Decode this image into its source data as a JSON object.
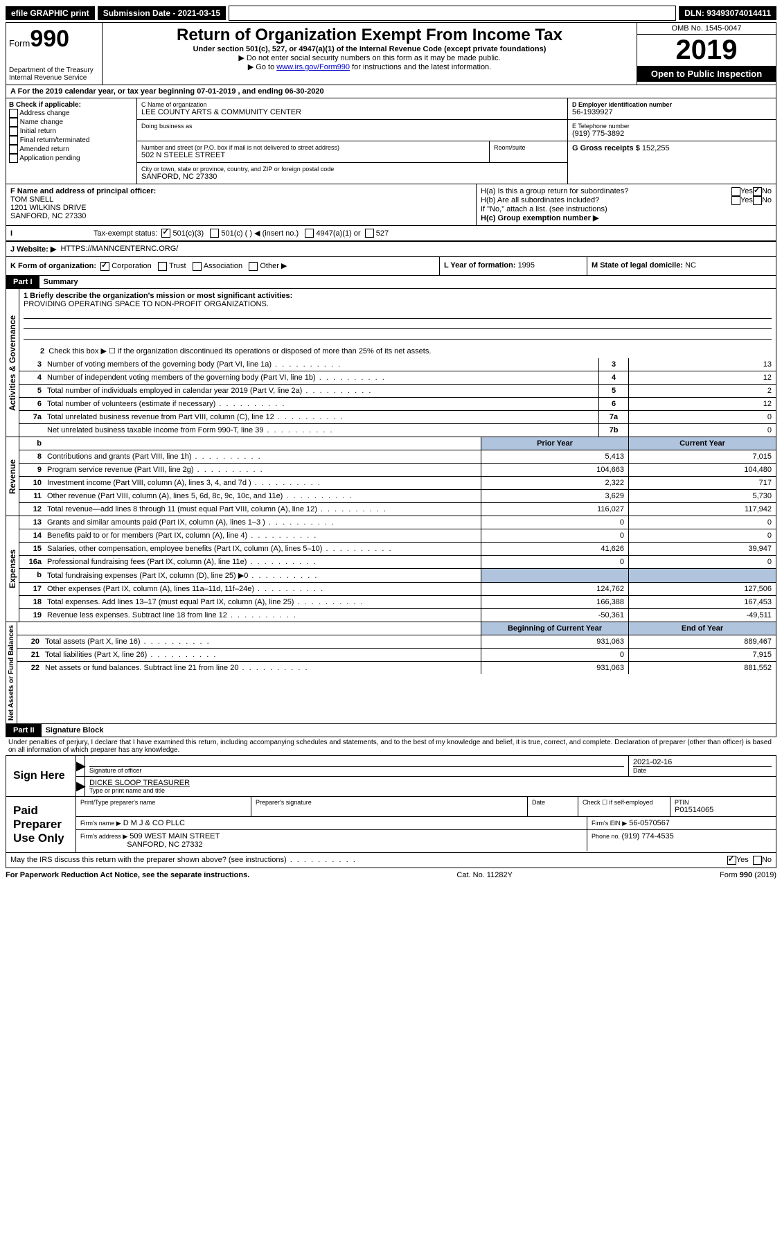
{
  "top": {
    "efile": "efile GRAPHIC print",
    "subdate_label": "Submission Date - ",
    "subdate": "2021-03-15",
    "dln_label": "DLN: ",
    "dln": "93493074014411"
  },
  "header": {
    "form_label": "Form",
    "form_num": "990",
    "dept": "Department of the Treasury\nInternal Revenue Service",
    "title": "Return of Organization Exempt From Income Tax",
    "sub1": "Under section 501(c), 527, or 4947(a)(1) of the Internal Revenue Code (except private foundations)",
    "sub2": "▶ Do not enter social security numbers on this form as it may be made public.",
    "sub3": "▶ Go to www.irs.gov/Form990 for instructions and the latest information.",
    "omb": "OMB No. 1545-0047",
    "year": "2019",
    "open": "Open to Public Inspection"
  },
  "rowA": "A For the 2019 calendar year, or tax year beginning 07-01-2019    , and ending 06-30-2020",
  "B": {
    "label": "B Check if applicable:",
    "items": [
      "Address change",
      "Name change",
      "Initial return",
      "Final return/terminated",
      "Amended return",
      "Application pending"
    ]
  },
  "C": {
    "name_label": "C Name of organization",
    "name": "LEE COUNTY ARTS & COMMUNITY CENTER",
    "dba_label": "Doing business as",
    "addr_label": "Number and street (or P.O. box if mail is not delivered to street address)",
    "room_label": "Room/suite",
    "addr": "502 N STEELE STREET",
    "city_label": "City or town, state or province, country, and ZIP or foreign postal code",
    "city": "SANFORD, NC  27330"
  },
  "D": {
    "label": "D Employer identification number",
    "ein": "56-1939927"
  },
  "E": {
    "label": "E Telephone number",
    "phone": "(919) 775-3892"
  },
  "G": {
    "label": "G Gross receipts $ ",
    "val": "152,255"
  },
  "F": {
    "label": "F  Name and address of principal officer:",
    "name": "TOM SNELL",
    "addr1": "1201 WILKINS DRIVE",
    "addr2": "SANFORD, NC  27330"
  },
  "H": {
    "a": "H(a)  Is this a group return for subordinates?",
    "b": "H(b)  Are all subordinates included?",
    "b2": "If \"No,\" attach a list. (see instructions)",
    "c": "H(c)  Group exemption number ▶"
  },
  "I": {
    "label": "Tax-exempt status:",
    "opts": [
      "501(c)(3)",
      "501(c) (  ) ◀ (insert no.)",
      "4947(a)(1) or",
      "527"
    ]
  },
  "J": {
    "label": "J   Website: ▶",
    "url": "HTTPS://MANNCENTERNC.ORG/"
  },
  "K": {
    "label": "K Form of organization:",
    "opts": [
      "Corporation",
      "Trust",
      "Association",
      "Other ▶"
    ]
  },
  "L": {
    "label": "L Year of formation: ",
    "val": "1995"
  },
  "M": {
    "label": "M State of legal domicile: ",
    "val": "NC"
  },
  "part1": {
    "hdr": "Part I",
    "title": "Summary",
    "q1": "1  Briefly describe the organization's mission or most significant activities:",
    "q1ans": "PROVIDING OPERATING SPACE TO NON-PROFIT ORGANIZATIONS.",
    "q2": "Check this box ▶ ☐  if the organization discontinued its operations or disposed of more than 25% of its net assets.",
    "rows_gov": [
      {
        "n": "3",
        "t": "Number of voting members of the governing body (Part VI, line 1a)",
        "b": "3",
        "v": "13"
      },
      {
        "n": "4",
        "t": "Number of independent voting members of the governing body (Part VI, line 1b)",
        "b": "4",
        "v": "12"
      },
      {
        "n": "5",
        "t": "Total number of individuals employed in calendar year 2019 (Part V, line 2a)",
        "b": "5",
        "v": "2"
      },
      {
        "n": "6",
        "t": "Total number of volunteers (estimate if necessary)",
        "b": "6",
        "v": "12"
      },
      {
        "n": "7a",
        "t": "Total unrelated business revenue from Part VIII, column (C), line 12",
        "b": "7a",
        "v": "0"
      },
      {
        "n": "",
        "t": "Net unrelated business taxable income from Form 990-T, line 39",
        "b": "7b",
        "v": "0"
      }
    ],
    "col_prior": "Prior Year",
    "col_curr": "Current Year",
    "rows_rev": [
      {
        "n": "8",
        "t": "Contributions and grants (Part VIII, line 1h)",
        "p": "5,413",
        "c": "7,015"
      },
      {
        "n": "9",
        "t": "Program service revenue (Part VIII, line 2g)",
        "p": "104,663",
        "c": "104,480"
      },
      {
        "n": "10",
        "t": "Investment income (Part VIII, column (A), lines 3, 4, and 7d )",
        "p": "2,322",
        "c": "717"
      },
      {
        "n": "11",
        "t": "Other revenue (Part VIII, column (A), lines 5, 6d, 8c, 9c, 10c, and 11e)",
        "p": "3,629",
        "c": "5,730"
      },
      {
        "n": "12",
        "t": "Total revenue—add lines 8 through 11 (must equal Part VIII, column (A), line 12)",
        "p": "116,027",
        "c": "117,942"
      }
    ],
    "rows_exp": [
      {
        "n": "13",
        "t": "Grants and similar amounts paid (Part IX, column (A), lines 1–3 )",
        "p": "0",
        "c": "0"
      },
      {
        "n": "14",
        "t": "Benefits paid to or for members (Part IX, column (A), line 4)",
        "p": "0",
        "c": "0"
      },
      {
        "n": "15",
        "t": "Salaries, other compensation, employee benefits (Part IX, column (A), lines 5–10)",
        "p": "41,626",
        "c": "39,947"
      },
      {
        "n": "16a",
        "t": "Professional fundraising fees (Part IX, column (A), line 11e)",
        "p": "0",
        "c": "0"
      },
      {
        "n": "b",
        "t": "Total fundraising expenses (Part IX, column (D), line 25) ▶0",
        "p": "",
        "c": "",
        "shade": true
      },
      {
        "n": "17",
        "t": "Other expenses (Part IX, column (A), lines 11a–11d, 11f–24e)",
        "p": "124,762",
        "c": "127,506"
      },
      {
        "n": "18",
        "t": "Total expenses. Add lines 13–17 (must equal Part IX, column (A), line 25)",
        "p": "166,388",
        "c": "167,453"
      },
      {
        "n": "19",
        "t": "Revenue less expenses. Subtract line 18 from line 12",
        "p": "-50,361",
        "c": "-49,511"
      }
    ],
    "col_beg": "Beginning of Current Year",
    "col_end": "End of Year",
    "rows_net": [
      {
        "n": "20",
        "t": "Total assets (Part X, line 16)",
        "p": "931,063",
        "c": "889,467"
      },
      {
        "n": "21",
        "t": "Total liabilities (Part X, line 26)",
        "p": "0",
        "c": "7,915"
      },
      {
        "n": "22",
        "t": "Net assets or fund balances. Subtract line 21 from line 20",
        "p": "931,063",
        "c": "881,552"
      }
    ],
    "vert_gov": "Activities & Governance",
    "vert_rev": "Revenue",
    "vert_exp": "Expenses",
    "vert_net": "Net Assets or Fund Balances"
  },
  "part2": {
    "hdr": "Part II",
    "title": "Signature Block",
    "decl": "Under penalties of perjury, I declare that I have examined this return, including accompanying schedules and statements, and to the best of my knowledge and belief, it is true, correct, and complete. Declaration of preparer (other than officer) is based on all information of which preparer has any knowledge."
  },
  "sign": {
    "here": "Sign Here",
    "sig_officer": "Signature of officer",
    "date": "2021-02-16",
    "date_label": "Date",
    "name": "DICKE SLOOP  TREASURER",
    "name_label": "Type or print name and title"
  },
  "paid": {
    "label": "Paid Preparer Use Only",
    "h1": "Print/Type preparer's name",
    "h2": "Preparer's signature",
    "h3": "Date",
    "h4": "Check ☐ if self-employed",
    "h5l": "PTIN",
    "h5": "P01514065",
    "firm_label": "Firm's name     ▶",
    "firm": "D M J & CO PLLC",
    "ein_label": "Firm's EIN ▶",
    "ein": "56-0570567",
    "addr_label": "Firm's address ▶",
    "addr1": "509 WEST MAIN STREET",
    "addr2": "SANFORD, NC  27332",
    "phone_label": "Phone no. ",
    "phone": "(919) 774-4535"
  },
  "discuss": "May the IRS discuss this return with the preparer shown above? (see instructions)",
  "footer": {
    "left": "For Paperwork Reduction Act Notice, see the separate instructions.",
    "mid": "Cat. No. 11282Y",
    "right": "Form 990 (2019)"
  },
  "yes": "Yes",
  "no": "No"
}
